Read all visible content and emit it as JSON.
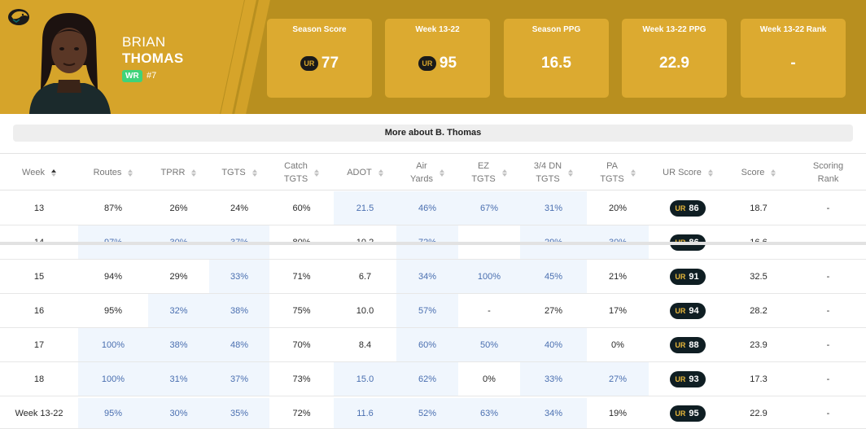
{
  "player": {
    "first_name": "BRIAN",
    "last_name": "THOMAS",
    "position": "WR",
    "jersey": "#7",
    "logo_icon": "jaguar-logo-icon",
    "photo_icon": "player-headshot"
  },
  "stats": [
    {
      "label": "Season Score",
      "value": "77",
      "ur": true
    },
    {
      "label": "Week 13-22",
      "value": "95",
      "ur": true
    },
    {
      "label": "Season PPG",
      "value": "16.5",
      "ur": false
    },
    {
      "label": "Week 13-22 PPG",
      "value": "22.9",
      "ur": false
    },
    {
      "label": "Week 13-22 Rank",
      "value": "-",
      "ur": false
    }
  ],
  "more_about": "More about B. Thomas",
  "columns": [
    {
      "label": "Week",
      "sort": "asc"
    },
    {
      "label": "Routes"
    },
    {
      "label": "TPRR"
    },
    {
      "label": "TGTS"
    },
    {
      "label": "Catch\nTGTS"
    },
    {
      "label": "ADOT"
    },
    {
      "label": "Air\nYards"
    },
    {
      "label": "EZ\nTGTS"
    },
    {
      "label": "3/4 DN\nTGTS"
    },
    {
      "label": "PA\nTGTS"
    },
    {
      "label": "UR Score"
    },
    {
      "label": "Score"
    },
    {
      "label": "Scoring\nRank"
    }
  ],
  "rows": [
    {
      "cells": [
        "13",
        "87%",
        "26%",
        "24%",
        "60%",
        "21.5",
        "46%",
        "67%",
        "31%",
        "20%",
        "86",
        "18.7",
        "-"
      ],
      "hl": [
        5,
        6,
        7,
        8
      ]
    },
    {
      "cells": [
        "14",
        "97%",
        "30%",
        "37%",
        "80%",
        "10.2",
        "72%",
        "-",
        "29%",
        "30%",
        "86",
        "16.6",
        "-"
      ],
      "hl": [
        1,
        2,
        3,
        6,
        8,
        9
      ]
    },
    {
      "cells": [
        "15",
        "94%",
        "29%",
        "33%",
        "71%",
        "6.7",
        "34%",
        "100%",
        "45%",
        "21%",
        "91",
        "32.5",
        "-"
      ],
      "hl": [
        3,
        6,
        7,
        8
      ]
    },
    {
      "cells": [
        "16",
        "95%",
        "32%",
        "38%",
        "75%",
        "10.0",
        "57%",
        "-",
        "27%",
        "17%",
        "94",
        "28.2",
        "-"
      ],
      "hl": [
        2,
        3,
        6
      ]
    },
    {
      "cells": [
        "17",
        "100%",
        "38%",
        "48%",
        "70%",
        "8.4",
        "60%",
        "50%",
        "40%",
        "0%",
        "88",
        "23.9",
        "-"
      ],
      "hl": [
        1,
        2,
        3,
        6,
        7,
        8
      ]
    },
    {
      "cells": [
        "18",
        "100%",
        "31%",
        "37%",
        "73%",
        "15.0",
        "62%",
        "0%",
        "33%",
        "27%",
        "93",
        "17.3",
        "-"
      ],
      "hl": [
        1,
        2,
        3,
        5,
        6,
        8,
        9
      ]
    }
  ],
  "summary": {
    "cells": [
      "Week 13-22",
      "95%",
      "30%",
      "35%",
      "72%",
      "11.6",
      "52%",
      "63%",
      "34%",
      "19%",
      "95",
      "22.9",
      "-"
    ],
    "hl": [
      1,
      2,
      3,
      5,
      6,
      7,
      8
    ]
  },
  "colors": {
    "gold": "#d6a42a",
    "dark_gold": "#b88f1f",
    "badge_dark": "#0f1e23",
    "highlight": "#f0f6fd",
    "highlight_text": "#4a6fb0"
  }
}
